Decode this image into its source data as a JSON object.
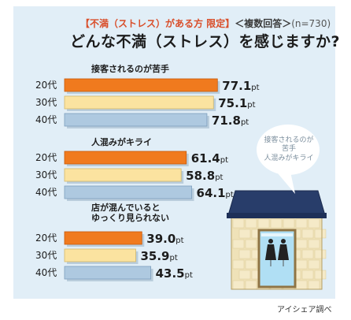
{
  "header": {
    "subtitle_tag": "【不満（ストレス）がある方 限定】",
    "subtitle_multi": "＜複数回答＞",
    "subtitle_n": "(n=730)",
    "title": "どんな不満（ストレス）を感じますか?"
  },
  "speech_bubble": {
    "line1": "接客されるのが",
    "line2": "苦手",
    "line3": "人混みがキライ"
  },
  "source": "アイシェア調べ",
  "unit": "pt",
  "colors": {
    "background": "#e1eef7",
    "age20": "#f07a1e",
    "age30": "#fbe3a0",
    "age40": "#aec9e0"
  },
  "chart_data": {
    "type": "bar",
    "orientation": "horizontal",
    "unit": "pt",
    "series_labels": [
      "20代",
      "30代",
      "40代"
    ],
    "groups": [
      {
        "title": [
          "接客されるのが苦手"
        ],
        "values": [
          77.1,
          75.1,
          71.8
        ]
      },
      {
        "title": [
          "人混みがキライ"
        ],
        "values": [
          61.4,
          58.8,
          64.1
        ]
      },
      {
        "title": [
          "店が混んでいると",
          "ゆっくり見られない"
        ],
        "values": [
          39.0,
          35.9,
          43.5
        ]
      }
    ]
  }
}
